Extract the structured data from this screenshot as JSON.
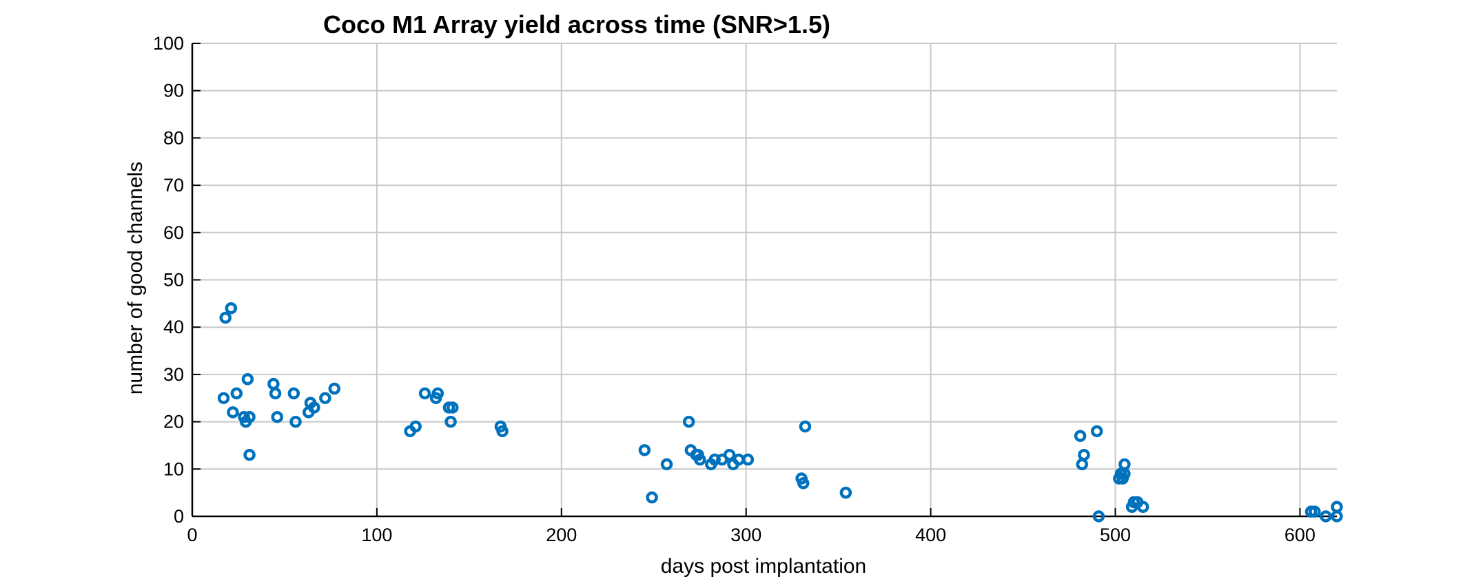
{
  "chart_data": {
    "type": "scatter",
    "title": "Coco M1 Array yield across time (SNR>1.5)",
    "xlabel": "days post implantation",
    "ylabel": "number of good channels",
    "xlim": [
      0,
      620
    ],
    "ylim": [
      0,
      100
    ],
    "xticks": [
      0,
      100,
      200,
      300,
      400,
      500,
      600
    ],
    "yticks": [
      0,
      10,
      20,
      30,
      40,
      50,
      60,
      70,
      80,
      90,
      100
    ],
    "grid": true,
    "marker": "circle",
    "color": "#0072BD",
    "series": [
      {
        "points": [
          [
            17,
            25
          ],
          [
            18,
            42
          ],
          [
            21,
            44
          ],
          [
            22,
            22
          ],
          [
            24,
            26
          ],
          [
            28,
            21
          ],
          [
            29,
            20
          ],
          [
            30,
            29
          ],
          [
            31,
            21
          ],
          [
            31,
            13
          ],
          [
            44,
            28
          ],
          [
            45,
            26
          ],
          [
            46,
            21
          ],
          [
            55,
            26
          ],
          [
            56,
            20
          ],
          [
            63,
            22
          ],
          [
            64,
            24
          ],
          [
            66,
            23
          ],
          [
            72,
            25
          ],
          [
            77,
            27
          ],
          [
            118,
            18
          ],
          [
            121,
            19
          ],
          [
            126,
            26
          ],
          [
            132,
            25
          ],
          [
            133,
            26
          ],
          [
            139,
            23
          ],
          [
            140,
            20
          ],
          [
            141,
            23
          ],
          [
            167,
            19
          ],
          [
            168,
            18
          ],
          [
            245,
            14
          ],
          [
            249,
            4
          ],
          [
            257,
            11
          ],
          [
            269,
            20
          ],
          [
            270,
            14
          ],
          [
            273,
            13
          ],
          [
            274,
            13
          ],
          [
            275,
            12
          ],
          [
            281,
            11
          ],
          [
            283,
            12
          ],
          [
            287,
            12
          ],
          [
            291,
            13
          ],
          [
            293,
            11
          ],
          [
            296,
            12
          ],
          [
            301,
            12
          ],
          [
            330,
            8
          ],
          [
            331,
            7
          ],
          [
            332,
            19
          ],
          [
            354,
            5
          ],
          [
            481,
            17
          ],
          [
            482,
            11
          ],
          [
            483,
            13
          ],
          [
            490,
            18
          ],
          [
            491,
            0
          ],
          [
            505,
            11
          ],
          [
            502,
            8
          ],
          [
            503,
            9
          ],
          [
            504,
            8
          ],
          [
            505,
            9
          ],
          [
            509,
            2
          ],
          [
            510,
            3
          ],
          [
            512,
            3
          ],
          [
            515,
            2
          ],
          [
            606,
            1
          ],
          [
            608,
            1
          ],
          [
            614,
            0
          ],
          [
            620,
            2
          ],
          [
            620,
            0
          ]
        ]
      }
    ]
  }
}
